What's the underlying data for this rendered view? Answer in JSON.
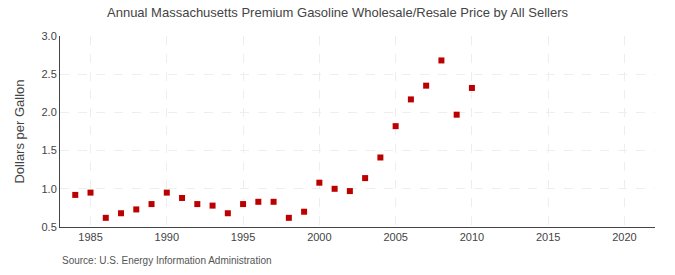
{
  "chart_data": {
    "type": "scatter",
    "title": "Annual Massachusetts Premium Gasoline Wholesale/Resale Price by All Sellers",
    "ylabel": "Dollars per Gallon",
    "annotations": [
      "Source: U.S. Energy Information Administration"
    ],
    "x": [
      1984,
      1985,
      1986,
      1987,
      1988,
      1989,
      1990,
      1991,
      1992,
      1993,
      1994,
      1995,
      1996,
      1997,
      1998,
      1999,
      2000,
      2001,
      2002,
      2003,
      2004,
      2005,
      2006,
      2007,
      2008,
      2009,
      2010
    ],
    "values": [
      0.92,
      0.95,
      0.62,
      0.68,
      0.73,
      0.8,
      0.95,
      0.88,
      0.8,
      0.78,
      0.68,
      0.8,
      0.83,
      0.83,
      0.62,
      0.7,
      1.08,
      1.0,
      0.97,
      1.14,
      1.41,
      1.82,
      2.17,
      2.35,
      2.68,
      1.97,
      2.32
    ],
    "color": "#bb0000",
    "marker": "square",
    "xlim": [
      1983,
      2022
    ],
    "ylim": [
      0.5,
      3.0
    ],
    "xticks": [
      1985,
      1990,
      1995,
      2000,
      2005,
      2010,
      2015,
      2020
    ],
    "yticks": [
      0.5,
      {
        "value": 1.0,
        "label": "1.0"
      },
      1.5,
      {
        "value": 2.0,
        "label": "2.0"
      },
      2.5,
      {
        "value": 3.0,
        "label": "3.0"
      }
    ],
    "grid": true
  }
}
